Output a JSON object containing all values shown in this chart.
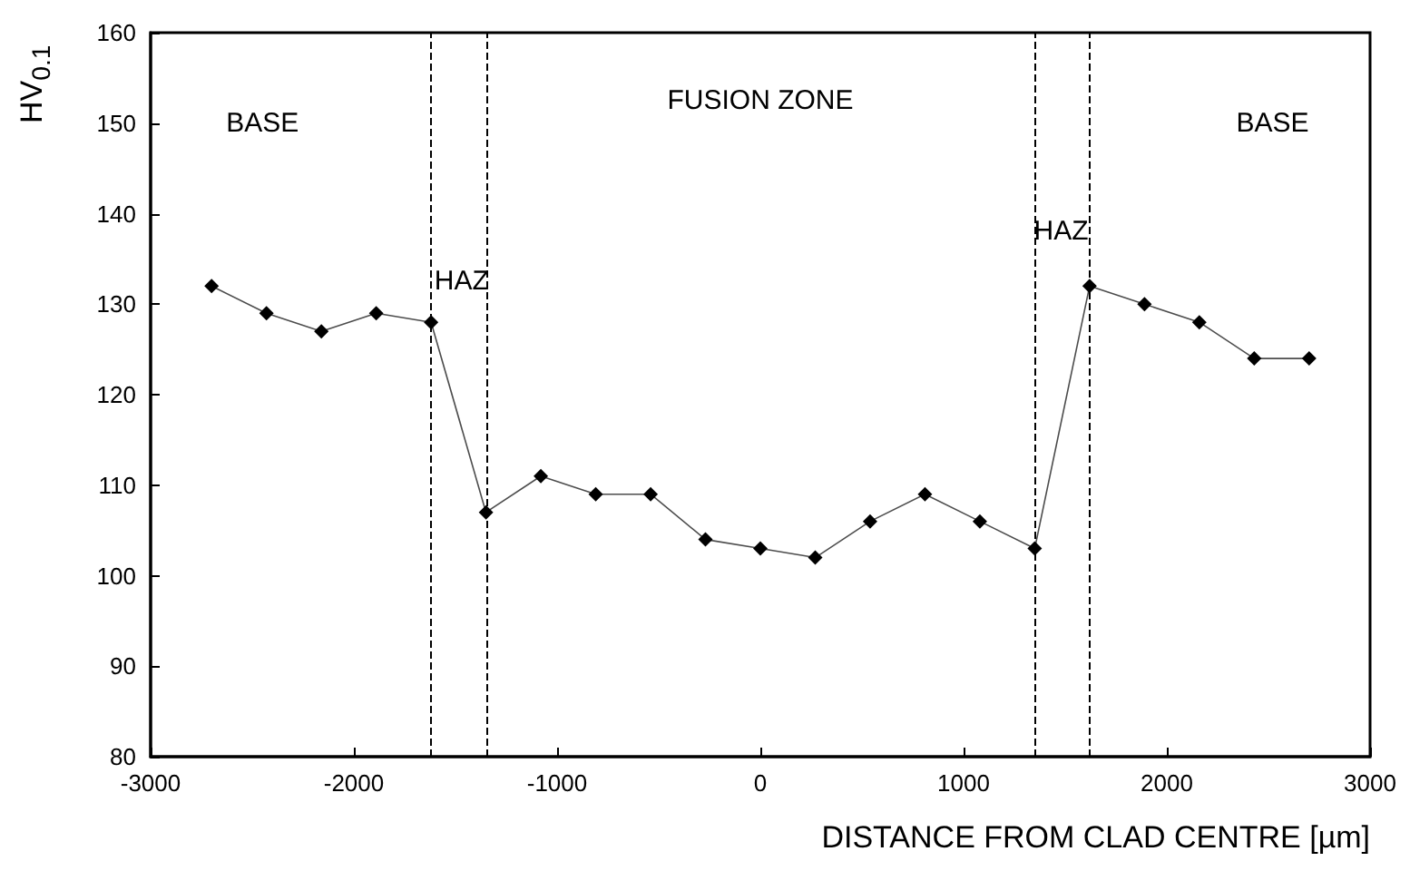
{
  "chart_data": {
    "type": "line",
    "xlabel": "DISTANCE FROM CLAD CENTRE [µm]",
    "ylabel": "HV$_{0.1}$",
    "x": [
      -2700,
      -2430,
      -2160,
      -1890,
      -1620,
      -1350,
      -1080,
      -810,
      -540,
      -270,
      0,
      270,
      540,
      810,
      1080,
      1350,
      1620,
      1890,
      2160,
      2430,
      2700
    ],
    "series": [
      {
        "color": "#000000",
        "values": [
          132,
          129,
          127,
          129,
          128,
          107,
          111,
          109,
          109,
          104,
          103,
          102,
          106,
          109,
          106,
          103,
          132,
          130,
          128,
          124,
          124
        ]
      }
    ],
    "xlim": [
      -3000,
      3000
    ],
    "xticks": [
      -3000,
      -2000,
      -1000,
      0,
      1000,
      2000,
      3000
    ],
    "ylim": [
      80,
      160
    ],
    "yticks": [
      80,
      90,
      100,
      110,
      120,
      130,
      140,
      150,
      160
    ],
    "marker": "diamond",
    "line_style": "solid",
    "grid": false,
    "ref_lines": [
      {
        "axis": "x",
        "value": -1620,
        "color": "#000000",
        "line_style": "dashed"
      },
      {
        "axis": "x",
        "value": -1350,
        "color": "#000000",
        "line_style": "dashed"
      },
      {
        "axis": "x",
        "value": 1350,
        "color": "#000000",
        "line_style": "dashed"
      },
      {
        "axis": "x",
        "value": 1620,
        "color": "#000000",
        "line_style": "dashed"
      }
    ],
    "annotations": [
      "BASE",
      "FUSION ZONE",
      "BASE",
      "HAZ",
      "HAZ"
    ]
  }
}
